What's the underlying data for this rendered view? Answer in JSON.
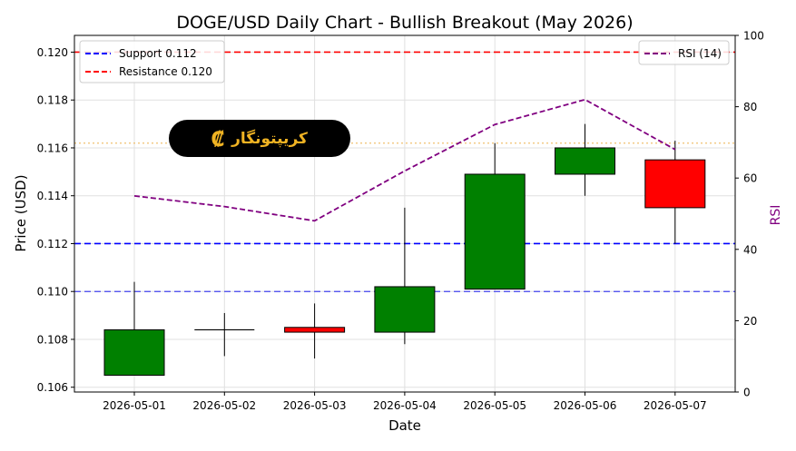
{
  "chart_data": {
    "type": "candlestick",
    "title": "DOGE/USD Daily Chart - Bullish Breakout (May 2026)",
    "xlabel": "Date",
    "ylabel": "Price (USD)",
    "y2label": "RSI",
    "ylim": [
      0.1058,
      0.1207
    ],
    "y2lim": [
      0,
      100
    ],
    "yticks": [
      "0.106",
      "0.108",
      "0.110",
      "0.112",
      "0.114",
      "0.116",
      "0.118",
      "0.120"
    ],
    "y2ticks": [
      "0",
      "20",
      "40",
      "60",
      "80",
      "100"
    ],
    "categories": [
      "2026-05-01",
      "2026-05-02",
      "2026-05-03",
      "2026-05-04",
      "2026-05-05",
      "2026-05-06",
      "2026-05-07"
    ],
    "candles": [
      {
        "date": "2026-05-01",
        "open": 0.1065,
        "high": 0.1104,
        "low": 0.1065,
        "close": 0.1084
      },
      {
        "date": "2026-05-02",
        "open": 0.1084,
        "high": 0.1091,
        "low": 0.1073,
        "close": 0.1084
      },
      {
        "date": "2026-05-03",
        "open": 0.1085,
        "high": 0.1095,
        "low": 0.1072,
        "close": 0.1083
      },
      {
        "date": "2026-05-04",
        "open": 0.1083,
        "high": 0.1135,
        "low": 0.1078,
        "close": 0.1102
      },
      {
        "date": "2026-05-05",
        "open": 0.1101,
        "high": 0.1162,
        "low": 0.1101,
        "close": 0.1149
      },
      {
        "date": "2026-05-06",
        "open": 0.1149,
        "high": 0.117,
        "low": 0.114,
        "close": 0.116
      },
      {
        "date": "2026-05-07",
        "open": 0.1155,
        "high": 0.1163,
        "low": 0.112,
        "close": 0.1135
      }
    ],
    "rsi": {
      "name": "RSI (14)",
      "values": [
        55,
        52,
        48,
        62,
        75,
        82,
        68
      ]
    },
    "hlines": [
      {
        "name": "Support 0.112",
        "y": 0.112,
        "color": "#0000ff",
        "in_legend": true
      },
      {
        "name": "Resistance 0.120",
        "y": 0.12,
        "color": "#ff0000",
        "in_legend": true
      },
      {
        "name": "",
        "y": 0.11,
        "color": "#4444ee",
        "in_legend": false
      },
      {
        "name": "",
        "y": 0.1162,
        "color": "#f0c070",
        "in_legend": false
      }
    ],
    "legend_left_position": "upper-left",
    "legend_right_position": "upper-right",
    "grid": true
  },
  "logo": {
    "text": "کریپتونگار",
    "symbol": "₡"
  },
  "colors": {
    "up": "#008000",
    "down": "#ff0000",
    "rsi": "#800080",
    "rsi_label": "#800080"
  }
}
